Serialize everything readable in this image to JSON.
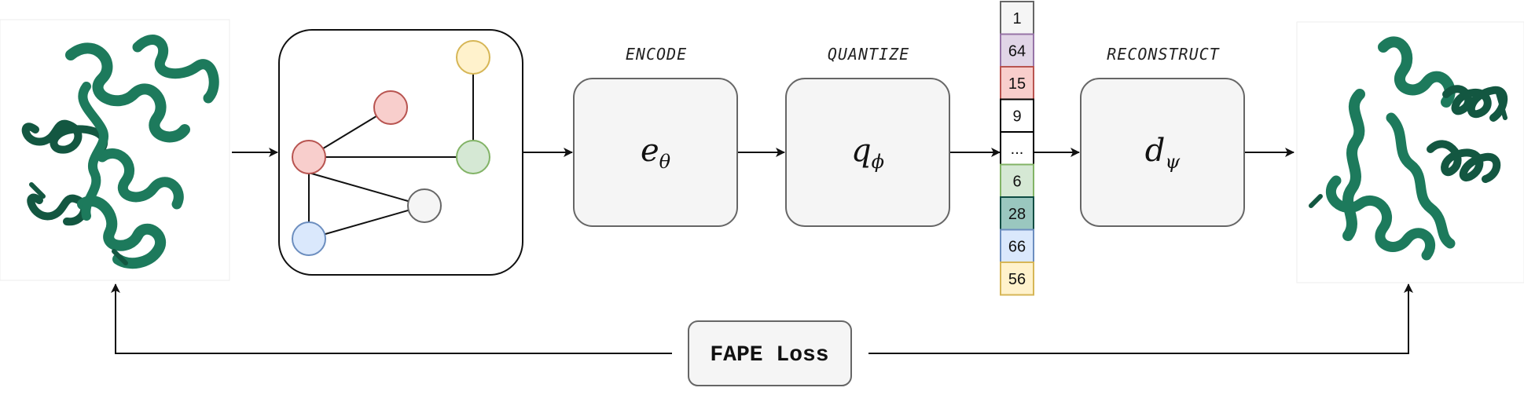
{
  "stages": {
    "encode": {
      "label": "ENCODE",
      "symbol": "e",
      "subscript": "θ"
    },
    "quantize": {
      "label": "QUANTIZE",
      "symbol": "q",
      "subscript": "ϕ"
    },
    "reconstruct": {
      "label": "RECONSTRUCT",
      "symbol": "d",
      "subscript": "ψ"
    }
  },
  "tokens": [
    {
      "label": "1",
      "fill": "#f5f5f5",
      "stroke": "#666666"
    },
    {
      "label": "64",
      "fill": "#e1d5e7",
      "stroke": "#9673a6"
    },
    {
      "label": "15",
      "fill": "#f8cecc",
      "stroke": "#b85450"
    },
    {
      "label": "9",
      "fill": "#ffffff",
      "stroke": "#000000"
    },
    {
      "label": "...",
      "fill": "#ffffff",
      "stroke": "#000000"
    },
    {
      "label": "6",
      "fill": "#d5e8d4",
      "stroke": "#82b366"
    },
    {
      "label": "28",
      "fill": "#9ac7bf",
      "stroke": "#0e4c42"
    },
    {
      "label": "66",
      "fill": "#dae8fc",
      "stroke": "#6c8ebf"
    },
    {
      "label": "56",
      "fill": "#fff2cc",
      "stroke": "#d6b656"
    }
  ],
  "graph_nodes": [
    {
      "id": "yellow",
      "fill": "#fff2cc",
      "stroke": "#d6b656"
    },
    {
      "id": "red-top",
      "fill": "#f8cecc",
      "stroke": "#b85450"
    },
    {
      "id": "red-main",
      "fill": "#f8cecc",
      "stroke": "#b85450"
    },
    {
      "id": "green",
      "fill": "#d5e8d4",
      "stroke": "#82b366"
    },
    {
      "id": "gray",
      "fill": "#f5f5f5",
      "stroke": "#666666"
    },
    {
      "id": "blue",
      "fill": "#dae8fc",
      "stroke": "#6c8ebf"
    }
  ],
  "loss": {
    "label": "FAPE Loss"
  },
  "colors": {
    "protein": "#1d7a5c",
    "box_fill": "#f5f5f5",
    "box_stroke": "#666666"
  }
}
